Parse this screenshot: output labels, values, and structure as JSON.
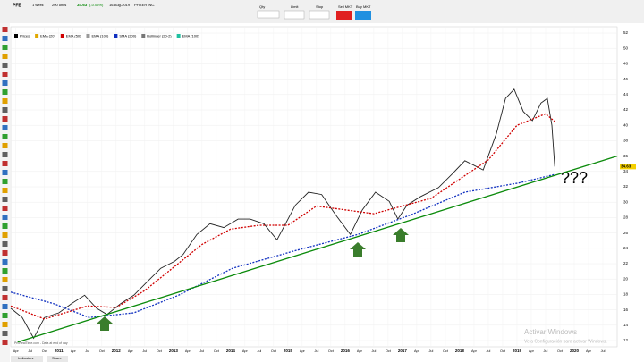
{
  "toolbar": {
    "symbol": "PFE",
    "period": "1 week",
    "units": "200 units",
    "price": "34.63",
    "change": "(-0.05%)",
    "date": "16-Aug-2019",
    "company": "PFIZER INC.",
    "qty": "Qty",
    "limit": "Limit",
    "stop": "Stop",
    "sell": "Sell MKT",
    "buy": "Buy MKT"
  },
  "footer": {
    "indicators": "Indicators",
    "share": "Share",
    "watermark_title": "Activar Windows",
    "watermark_text": "Ve a Configuración para activar Windows."
  },
  "chart_data": {
    "type": "line",
    "note": "ProRealTime.com - Data at end of day",
    "annotation": "???",
    "legend_items": [
      {
        "name": "Prices",
        "color": "#000000"
      },
      {
        "name": "EMA (20)",
        "color": "#e0a800"
      },
      {
        "name": "EMA (50)",
        "color": "#d00000"
      },
      {
        "name": "EMA (100)",
        "color": "#999999"
      },
      {
        "name": "SMA (200)",
        "color": "#1030c0"
      },
      {
        "name": "Bollinger (20-2)",
        "color": "#777777"
      },
      {
        "name": "EMA (100)",
        "color": "#20c0a0"
      }
    ],
    "series": [
      {
        "name": "Prices",
        "color": "#222222",
        "x": [
          2010.16,
          2010.36,
          2010.56,
          2010.75,
          2011,
          2011.22,
          2011.45,
          2011.66,
          2011.84,
          2012.08,
          2012.31,
          2012.55,
          2012.78,
          2013.02,
          2013.17,
          2013.41,
          2013.64,
          2013.88,
          2014.13,
          2014.34,
          2014.58,
          2014.81,
          2015.13,
          2015.36,
          2015.59,
          2015.83,
          2016.09,
          2016.3,
          2016.53,
          2016.77,
          2016.92,
          2017.08,
          2017.31,
          2017.63,
          2017.86,
          2018.09,
          2018.41,
          2018.64,
          2018.8,
          2018.95,
          2019.11,
          2019.27,
          2019.42,
          2019.53,
          2019.61,
          2019.66
        ],
        "values": [
          16.2,
          15,
          12.3,
          15,
          15.6,
          16.8,
          17.9,
          16.2,
          15.4,
          16.8,
          17.9,
          19.7,
          21.4,
          22.3,
          23.2,
          25.8,
          27.2,
          26.7,
          27.8,
          27.8,
          27.2,
          25.1,
          29.6,
          31.3,
          31,
          28.4,
          25.8,
          29,
          31.3,
          30.1,
          27.8,
          29.6,
          30.7,
          31.9,
          33.6,
          35.4,
          34.2,
          38.9,
          43.5,
          44.7,
          41.8,
          40.6,
          42.9,
          43.5,
          40,
          34.63
        ]
      },
      {
        "name": "EMA (50)",
        "color": "#d00000",
        "dash": true,
        "x": [
          2010.16,
          2010.75,
          2011.5,
          2012,
          2012.5,
          2013,
          2013.5,
          2014,
          2014.5,
          2015,
          2015.5,
          2016,
          2016.5,
          2017,
          2017.5,
          2018,
          2018.5,
          2019,
          2019.5,
          2019.66
        ],
        "values": [
          16.5,
          14.8,
          16.5,
          16.3,
          18.5,
          21.5,
          24.5,
          26.5,
          27,
          27,
          29.5,
          29,
          28.5,
          29.5,
          30.5,
          33,
          35.5,
          40,
          41.5,
          40.5
        ]
      },
      {
        "name": "SMA (200)",
        "color": "#1030c0",
        "dash": true,
        "x": [
          2010.16,
          2010.91,
          2011.53,
          2012.31,
          2013.09,
          2014.03,
          2015.13,
          2016.22,
          2017.16,
          2018.09,
          2019.03,
          2019.66
        ],
        "values": [
          18.3,
          16.8,
          15,
          15.6,
          17.9,
          21.4,
          23.7,
          25.8,
          28.4,
          31.3,
          32.5,
          33.6
        ]
      },
      {
        "name": "Trendline",
        "color": "#0a8a0a",
        "x": [
          2010.28,
          2020.75
        ],
        "values": [
          11.8,
          36
        ]
      }
    ],
    "xlim": [
      2010.16,
      2020.75
    ],
    "ylim": [
      12,
      52
    ],
    "yticks": [
      12,
      14,
      16,
      18,
      20,
      22,
      24,
      26,
      28,
      30,
      32,
      34,
      36,
      38,
      40,
      42,
      44,
      46,
      48,
      50,
      52
    ],
    "xticks": [
      {
        "value": 2010.25,
        "label": "Apr"
      },
      {
        "value": 2010.5,
        "label": "Jul"
      },
      {
        "value": 2010.75,
        "label": "Oct"
      },
      2011,
      {
        "value": 2011.25,
        "label": "Apr"
      },
      {
        "value": 2011.5,
        "label": "Jul"
      },
      {
        "value": 2011.75,
        "label": "Oct"
      },
      2012,
      {
        "value": 2012.25,
        "label": "Apr"
      },
      {
        "value": 2012.5,
        "label": "Jul"
      },
      {
        "value": 2012.75,
        "label": "Oct"
      },
      2013,
      {
        "value": 2013.25,
        "label": "Apr"
      },
      {
        "value": 2013.5,
        "label": "Jul"
      },
      {
        "value": 2013.75,
        "label": "Oct"
      },
      2014,
      {
        "value": 2014.25,
        "label": "Apr"
      },
      {
        "value": 2014.5,
        "label": "Jul"
      },
      {
        "value": 2014.75,
        "label": "Oct"
      },
      2015,
      {
        "value": 2015.25,
        "label": "Apr"
      },
      {
        "value": 2015.5,
        "label": "Jul"
      },
      {
        "value": 2015.75,
        "label": "Oct"
      },
      2016,
      {
        "value": 2016.25,
        "label": "Apr"
      },
      {
        "value": 2016.5,
        "label": "Jul"
      },
      {
        "value": 2016.75,
        "label": "Oct"
      },
      2017,
      {
        "value": 2017.25,
        "label": "Apr"
      },
      {
        "value": 2017.5,
        "label": "Jul"
      },
      {
        "value": 2017.75,
        "label": "Oct"
      },
      2018,
      {
        "value": 2018.25,
        "label": "Apr"
      },
      {
        "value": 2018.5,
        "label": "Jul"
      },
      {
        "value": 2018.75,
        "label": "Oct"
      },
      2019,
      {
        "value": 2019.25,
        "label": "Apr"
      },
      {
        "value": 2019.5,
        "label": "Jul"
      },
      {
        "value": 2019.75,
        "label": "Oct"
      },
      2020,
      {
        "value": 2020.25,
        "label": "Apr"
      },
      {
        "value": 2020.5,
        "label": "Jul"
      }
    ],
    "grid": true
  }
}
